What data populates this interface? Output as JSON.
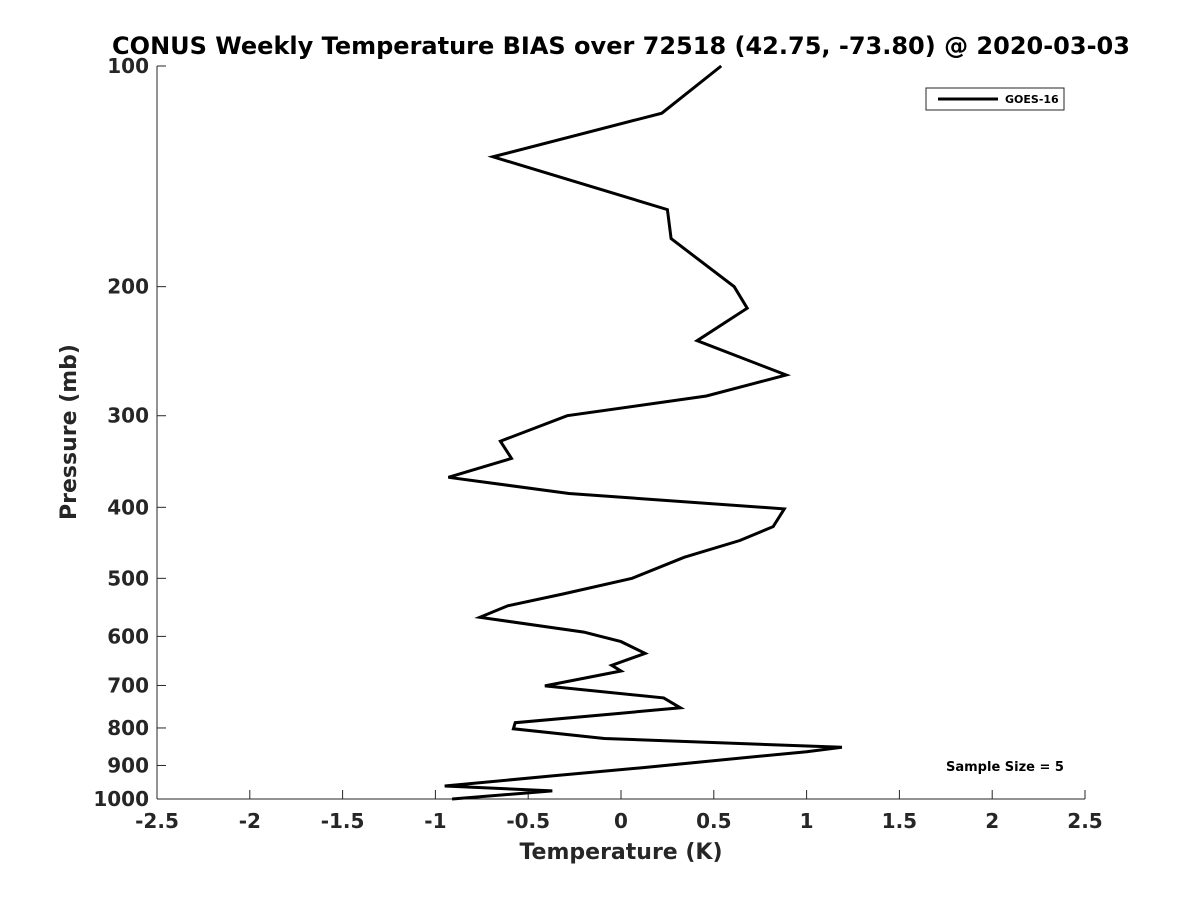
{
  "chart_data": {
    "type": "line",
    "title": "CONUS Weekly Temperature BIAS over 72518 (42.75, -73.80) @ 2020-03-03",
    "xlabel": "Temperature (K)",
    "ylabel": "Pressure (mb)",
    "xlim": [
      -2.5,
      2.5
    ],
    "ylim": [
      1000,
      100
    ],
    "yscale": "log",
    "xticks": [
      -2.5,
      -2,
      -1.5,
      -1,
      -0.5,
      0,
      0.5,
      1,
      1.5,
      2,
      2.5
    ],
    "xtick_labels": [
      "-2.5",
      "-2",
      "-1.5",
      "-1",
      "-0.5",
      "0",
      "0.5",
      "1",
      "1.5",
      "2",
      "2.5"
    ],
    "yticks": [
      100,
      200,
      300,
      400,
      500,
      600,
      700,
      800,
      900,
      1000
    ],
    "ytick_labels": [
      "100",
      "200",
      "300",
      "400",
      "500",
      "600",
      "700",
      "800",
      "900",
      "1000"
    ],
    "legend_position": "top-right",
    "series": [
      {
        "name": "GOES-16",
        "color": "#000000",
        "x": [
          0.54,
          0.22,
          -0.69,
          0.25,
          0.27,
          0.61,
          0.68,
          0.41,
          0.89,
          0.46,
          -0.29,
          -0.65,
          -0.59,
          -0.93,
          -0.28,
          0.88,
          0.82,
          0.64,
          0.34,
          0.06,
          -0.31,
          -0.61,
          -0.76,
          -0.2,
          0.0,
          0.13,
          -0.05,
          0.0,
          -0.41,
          0.23,
          0.32,
          -0.03,
          -0.57,
          -0.58,
          -0.09,
          1.19,
          1.0,
          0.47,
          0.12,
          -0.37,
          -0.95,
          -0.37,
          -0.91
        ],
        "y": [
          100,
          116,
          133,
          157,
          172,
          200,
          214,
          237,
          264,
          282,
          300,
          325,
          343,
          364,
          383,
          402,
          425,
          444,
          468,
          500,
          525,
          545,
          565,
          592,
          610,
          633,
          657,
          669,
          701,
          728,
          751,
          765,
          787,
          802,
          827,
          850,
          862,
          888,
          906,
          930,
          960,
          975,
          1000
        ]
      }
    ],
    "annotation": "Sample Size = 5"
  }
}
